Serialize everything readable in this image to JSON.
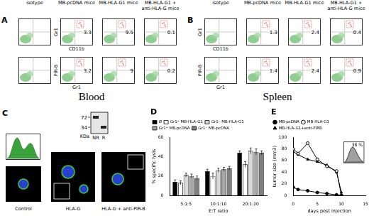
{
  "panels": {
    "A": {
      "letter": "A",
      "title": "Blood",
      "columns": [
        "isotype",
        "MB-pcDNA mice",
        "MB-HLA-G1 mice",
        "MB-HLA-G1 + anti-HLA-G mice"
      ],
      "rows": [
        {
          "y_label": "Gr1",
          "x_label": "CD11b",
          "values": [
            null,
            3.3,
            9.5,
            0.1
          ]
        },
        {
          "y_label": "PIR-B",
          "x_label": "Gr1",
          "values": [
            null,
            3.2,
            9,
            0.2
          ]
        }
      ]
    },
    "B": {
      "letter": "B",
      "title": "Spleen",
      "columns": [
        "isotype",
        "MB-pcDNA mice",
        "MB-HLA-G1 mice",
        "MB-HLA-G1 + anti-HLA-G mice"
      ],
      "rows": [
        {
          "y_label": "Gr1",
          "x_label": "CD11b",
          "values": [
            null,
            1.3,
            2.4,
            0.4
          ]
        },
        {
          "y_label": "PIR-B",
          "x_label": "Gr1",
          "values": [
            null,
            1.4,
            2.4,
            0.9
          ]
        }
      ]
    },
    "C": {
      "letter": "C",
      "images": [
        "Control",
        "HLA-G",
        "HLA-G + anti-PIR-B"
      ],
      "blot": {
        "markers": [
          72,
          34
        ],
        "unit": "KDa",
        "lanes": [
          "NR",
          "R"
        ]
      }
    }
  },
  "chart_data": [
    {
      "type": "bar",
      "title": "D",
      "x_label": "E:T ratio",
      "y_label": "% specific lysis",
      "categories": [
        "5:1:5",
        "10:1:10",
        "20:1:20"
      ],
      "series": [
        {
          "name": "Ø",
          "color": "#000000",
          "values": [
            14,
            25,
            44
          ],
          "errors": [
            2,
            2,
            2
          ]
        },
        {
          "name": "Gr1⁺ MB-HLA-G1",
          "color": "#ffffff",
          "values": [
            13,
            20,
            32
          ],
          "errors": [
            2,
            3,
            3
          ]
        },
        {
          "name": "Gr1⁻ MB-HLA-G1",
          "color": "#d9d9d9",
          "values": [
            21,
            26,
            46
          ],
          "errors": [
            2,
            2,
            3
          ]
        },
        {
          "name": "Gr1⁺ MB-pcDNA",
          "color": "#a6a6a6",
          "values": [
            20,
            27,
            45
          ],
          "errors": [
            2,
            2,
            3
          ]
        },
        {
          "name": "Gr1⁻ MB-pcDNA",
          "color": "#7f7f7f",
          "values": [
            18,
            28,
            44
          ],
          "errors": [
            2,
            2,
            2
          ]
        }
      ],
      "ylim": [
        0,
        60
      ],
      "yticks": [
        0,
        20,
        40,
        60
      ],
      "grid": false,
      "legend": "top"
    },
    {
      "type": "line",
      "title": "E",
      "x_label": "days post injection",
      "y_label": "tumor size (mm3)",
      "x": [
        0,
        1,
        3,
        5,
        7,
        9,
        10
      ],
      "series": [
        {
          "name": "MB-pcDNA",
          "color": "#000000",
          "marker": "filled_circle",
          "values": [
            14,
            10,
            8,
            5,
            3,
            1,
            0
          ]
        },
        {
          "name": "MB-HLA-G1",
          "color": "#000000",
          "marker": "open_circle",
          "values": [
            80,
            72,
            90,
            62,
            50,
            42,
            0
          ]
        },
        {
          "name": "MB-HLA-G1+anti-PIRB",
          "color": "#000000",
          "marker": "triangle",
          "values": [
            75,
            70,
            62,
            58,
            52,
            40,
            5
          ]
        }
      ],
      "xlim": [
        0,
        15
      ],
      "xticks": [
        0,
        5,
        10,
        15
      ],
      "ylim": [
        0,
        100
      ],
      "yticks": [
        0,
        20,
        40,
        60,
        80,
        100
      ],
      "inset": {
        "value": 38,
        "label": "38 %"
      },
      "grid": false,
      "legend": "top"
    }
  ]
}
